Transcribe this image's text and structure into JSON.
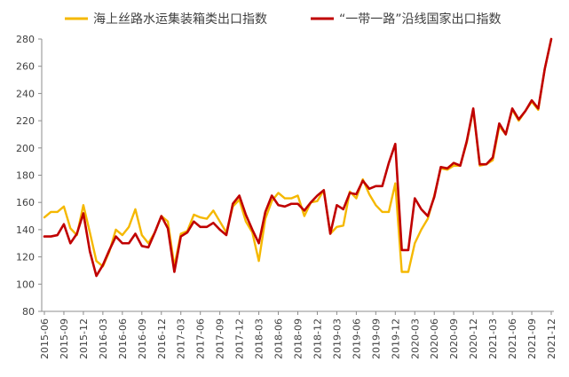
{
  "chart_data": {
    "type": "line",
    "title": "",
    "xlabel": "",
    "ylabel": "",
    "ylim": [
      80,
      280
    ],
    "yticks": [
      80,
      100,
      120,
      140,
      160,
      180,
      200,
      220,
      240,
      260,
      280
    ],
    "grid": false,
    "legend_position": "top",
    "x": [
      "2015-06",
      "2015-07",
      "2015-08",
      "2015-09",
      "2015-10",
      "2015-11",
      "2015-12",
      "2016-01",
      "2016-02",
      "2016-03",
      "2016-04",
      "2016-05",
      "2016-06",
      "2016-07",
      "2016-08",
      "2016-09",
      "2016-10",
      "2016-11",
      "2016-12",
      "2017-01",
      "2017-02",
      "2017-03",
      "2017-04",
      "2017-05",
      "2017-06",
      "2017-07",
      "2017-08",
      "2017-09",
      "2017-10",
      "2017-11",
      "2017-12",
      "2018-01",
      "2018-02",
      "2018-03",
      "2018-04",
      "2018-05",
      "2018-06",
      "2018-07",
      "2018-08",
      "2018-09",
      "2018-10",
      "2018-11",
      "2018-12",
      "2019-01",
      "2019-02",
      "2019-03",
      "2019-04",
      "2019-05",
      "2019-06",
      "2019-07",
      "2019-08",
      "2019-09",
      "2019-10",
      "2019-11",
      "2019-12",
      "2020-01",
      "2020-02",
      "2020-03",
      "2020-04",
      "2020-05",
      "2020-06",
      "2020-07",
      "2020-08",
      "2020-09",
      "2020-10",
      "2020-11",
      "2020-12",
      "2021-01",
      "2021-02",
      "2021-03",
      "2021-04",
      "2021-05",
      "2021-06",
      "2021-07",
      "2021-08",
      "2021-09",
      "2021-10",
      "2021-11",
      "2021-12"
    ],
    "x_tick_labels": [
      "2015-06",
      "2015-09",
      "2015-12",
      "2016-03",
      "2016-06",
      "2016-09",
      "2016-12",
      "2017-03",
      "2017-06",
      "2017-09",
      "2017-12",
      "2018-03",
      "2018-06",
      "2018-09",
      "2018-12",
      "2019-03",
      "2019-06",
      "2019-09",
      "2019-12",
      "2020-03",
      "2020-06",
      "2020-09",
      "2020-12",
      "2021-03",
      "2021-06",
      "2021-09",
      "2021-12"
    ],
    "series": [
      {
        "name": "海上丝路水运集装箱类出口指数",
        "color": "#F5B800",
        "values": [
          149,
          153,
          153,
          157,
          141,
          136,
          158,
          138,
          117,
          113,
          124,
          140,
          136,
          142,
          155,
          136,
          130,
          138,
          150,
          146,
          113,
          137,
          139,
          151,
          149,
          148,
          154,
          146,
          138,
          157,
          162,
          146,
          138,
          117,
          148,
          161,
          167,
          163,
          163,
          165,
          150,
          160,
          161,
          169,
          137,
          142,
          143,
          168,
          163,
          177,
          166,
          158,
          153,
          153,
          174,
          109,
          109,
          130,
          140,
          148,
          165,
          185,
          184,
          187,
          187,
          204,
          228,
          187,
          188,
          191,
          216,
          210,
          228,
          220,
          227,
          234,
          228,
          258,
          280
        ]
      },
      {
        "name": "“一带一路”沿线国家出口指数",
        "color": "#C00000",
        "values": [
          135,
          135,
          136,
          144,
          130,
          137,
          152,
          124,
          106,
          114,
          125,
          135,
          130,
          130,
          137,
          128,
          127,
          138,
          150,
          141,
          109,
          135,
          138,
          146,
          142,
          142,
          145,
          140,
          136,
          159,
          165,
          151,
          140,
          130,
          153,
          165,
          158,
          157,
          159,
          159,
          154,
          160,
          165,
          169,
          137,
          158,
          155,
          167,
          166,
          176,
          170,
          172,
          172,
          189,
          203,
          125,
          125,
          163,
          155,
          150,
          164,
          186,
          185,
          189,
          187,
          205,
          229,
          188,
          188,
          193,
          218,
          210,
          229,
          221,
          227,
          235,
          229,
          258,
          280
        ]
      }
    ]
  }
}
